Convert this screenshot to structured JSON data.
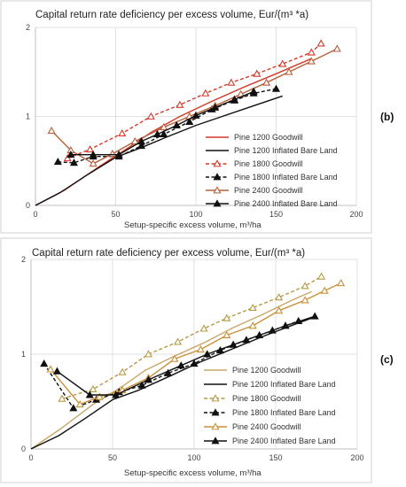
{
  "chart_data": [
    {
      "type": "line",
      "panel_label": "(b)",
      "title": "Capital return rate deficiency per excess volume,  Eur/(m³ *a)",
      "xlabel": "Setup-specific excess volume, m³/ha",
      "ylabel": "",
      "xlim": [
        0,
        200
      ],
      "ylim": [
        0,
        2
      ],
      "xticks": [
        "0",
        "50",
        "100",
        "150",
        "200"
      ],
      "yticks": [
        "0",
        "1",
        "2"
      ],
      "grid": true,
      "legend_position": "right",
      "series": [
        {
          "name": "Pine 1200 Goodwill",
          "color": "#d43a2a",
          "dash": "solid",
          "marker": "none",
          "x": [
            0,
            18,
            40,
            58,
            72,
            90,
            110,
            130,
            150,
            172
          ],
          "y": [
            0,
            0.17,
            0.44,
            0.65,
            0.82,
            1.0,
            1.17,
            1.33,
            1.48,
            1.65
          ]
        },
        {
          "name": "Pine 1200 Inflated Bare Land",
          "color": "#111111",
          "dash": "solid",
          "marker": "none",
          "x": [
            0,
            15,
            32,
            50,
            66,
            82,
            100,
            118,
            136,
            154
          ],
          "y": [
            0,
            0.14,
            0.34,
            0.54,
            0.65,
            0.77,
            0.9,
            1.01,
            1.12,
            1.23
          ]
        },
        {
          "name": "Pine 1800 Goodwill",
          "color": "#d43a2a",
          "dash": "dash",
          "marker": "open-triangle",
          "x": [
            20,
            34,
            54,
            72,
            90,
            106,
            122,
            138,
            154,
            172,
            178
          ],
          "y": [
            0.53,
            0.63,
            0.81,
            1.0,
            1.13,
            1.26,
            1.38,
            1.48,
            1.59,
            1.72,
            1.82
          ]
        },
        {
          "name": "Pine 1800 Inflated Bare Land",
          "color": "#111111",
          "dash": "dash",
          "marker": "filled-triangle",
          "x": [
            14,
            24,
            36,
            52,
            66,
            80,
            96,
            110,
            124,
            136,
            150
          ],
          "y": [
            0.49,
            0.48,
            0.55,
            0.55,
            0.67,
            0.8,
            0.94,
            1.08,
            1.18,
            1.26,
            1.31
          ]
        },
        {
          "name": "Pine 2400 Goodwill",
          "color": "#b5603a",
          "dash": "solid",
          "marker": "open-triangle",
          "x": [
            10,
            22,
            36,
            48,
            62,
            80,
            96,
            112,
            128,
            144,
            158,
            172,
            188
          ],
          "y": [
            0.84,
            0.62,
            0.47,
            0.58,
            0.72,
            0.88,
            1.0,
            1.12,
            1.25,
            1.38,
            1.5,
            1.62,
            1.76
          ]
        },
        {
          "name": "Pine 2400 Inflated Bare Land",
          "color": "#111111",
          "dash": "solid",
          "marker": "filled-triangle",
          "x": [
            22,
            36,
            52,
            66,
            76,
            88,
            100,
            112,
            124,
            136
          ],
          "y": [
            0.57,
            0.57,
            0.57,
            0.72,
            0.8,
            0.9,
            1.01,
            1.1,
            1.19,
            1.28
          ]
        }
      ]
    },
    {
      "type": "line",
      "panel_label": "(c)",
      "title": "Capital return rate deficiency per excess volume,  Eur/(m³ *a)",
      "xlabel": "Setup-specific excess volume, m³/ha",
      "ylabel": "",
      "xlim": [
        0,
        200
      ],
      "ylim": [
        0,
        2
      ],
      "xticks": [
        "0",
        "50",
        "100",
        "150",
        "200"
      ],
      "yticks": [
        "0",
        "1",
        "2"
      ],
      "grid": true,
      "legend_position": "right",
      "series": [
        {
          "name": "Pine 1200 Goodwill",
          "color": "#c9a766",
          "dash": "solid",
          "marker": "none",
          "x": [
            0,
            18,
            38,
            56,
            70,
            88,
            106,
            124,
            142,
            160,
            172
          ],
          "y": [
            0,
            0.21,
            0.47,
            0.66,
            0.83,
            0.98,
            1.12,
            1.28,
            1.42,
            1.57,
            1.66
          ]
        },
        {
          "name": "Pine 1200 Inflated Bare Land",
          "color": "#111111",
          "dash": "solid",
          "marker": "none",
          "x": [
            0,
            17,
            33,
            50,
            66,
            84,
            104,
            124,
            144,
            164,
            172
          ],
          "y": [
            0,
            0.14,
            0.32,
            0.52,
            0.62,
            0.76,
            0.92,
            1.06,
            1.2,
            1.33,
            1.38
          ]
        },
        {
          "name": "Pine 1800 Goodwill",
          "color": "#b59a48",
          "dash": "dash",
          "marker": "open-triangle",
          "x": [
            19,
            38,
            56,
            72,
            90,
            106,
            120,
            136,
            152,
            168,
            178
          ],
          "y": [
            0.53,
            0.63,
            0.81,
            1.0,
            1.13,
            1.27,
            1.38,
            1.49,
            1.6,
            1.72,
            1.82
          ]
        },
        {
          "name": "Pine 1800 Inflated Bare Land",
          "color": "#111111",
          "dash": "dash",
          "marker": "filled-triangle",
          "x": [
            8,
            26,
            40,
            54,
            68,
            84,
            100,
            116,
            132,
            148,
            164
          ],
          "y": [
            0.9,
            0.43,
            0.52,
            0.6,
            0.67,
            0.8,
            0.9,
            1.04,
            1.15,
            1.25,
            1.35
          ]
        },
        {
          "name": "Pine 2400 Goodwill",
          "color": "#c9903a",
          "dash": "solid",
          "marker": "open-triangle",
          "x": [
            12,
            30,
            42,
            56,
            72,
            88,
            104,
            120,
            136,
            152,
            168,
            180,
            190
          ],
          "y": [
            0.84,
            0.47,
            0.55,
            0.62,
            0.75,
            0.95,
            1.05,
            1.2,
            1.3,
            1.46,
            1.57,
            1.67,
            1.75
          ]
        },
        {
          "name": "Pine 2400 Inflated Bare Land",
          "color": "#111111",
          "dash": "solid",
          "marker": "filled-triangle",
          "x": [
            16,
            36,
            52,
            72,
            92,
            108,
            124,
            140,
            156,
            174
          ],
          "y": [
            0.82,
            0.57,
            0.57,
            0.73,
            0.88,
            1.0,
            1.1,
            1.2,
            1.3,
            1.4
          ]
        }
      ]
    }
  ]
}
